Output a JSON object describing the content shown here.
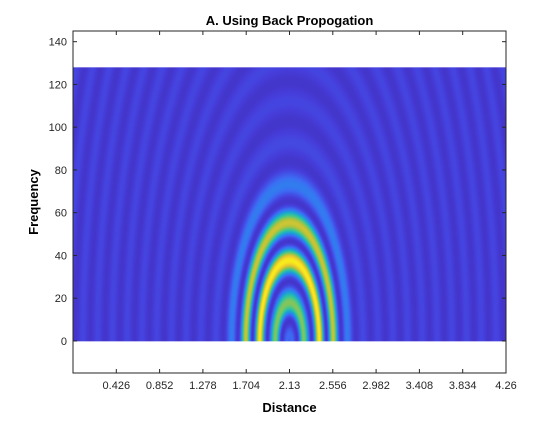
{
  "chart_data": {
    "type": "heatmap",
    "title": "A. Using Back Propogation",
    "xlabel": "Distance",
    "ylabel": "Frequency",
    "xlim": [
      0,
      4.26
    ],
    "ylim": [
      -15,
      145
    ],
    "x_ticks": [
      "0.426",
      "0.852",
      "1.278",
      "1.704",
      "2.13",
      "2.556",
      "2.982",
      "3.408",
      "3.834",
      "4.26"
    ],
    "y_ticks": [
      "0",
      "20",
      "40",
      "60",
      "80",
      "100",
      "120",
      "140"
    ],
    "data_x_range": [
      0,
      4.26
    ],
    "data_y_range": [
      0,
      128
    ],
    "center_distance": 2.13,
    "peak_frequency_band": [
      30,
      58
    ],
    "colormap": "parula",
    "grid": false,
    "colors": {
      "low": "#3e26a8",
      "mid": "#23b9b5",
      "high": "#f9fb15",
      "axis": "#262626"
    }
  }
}
